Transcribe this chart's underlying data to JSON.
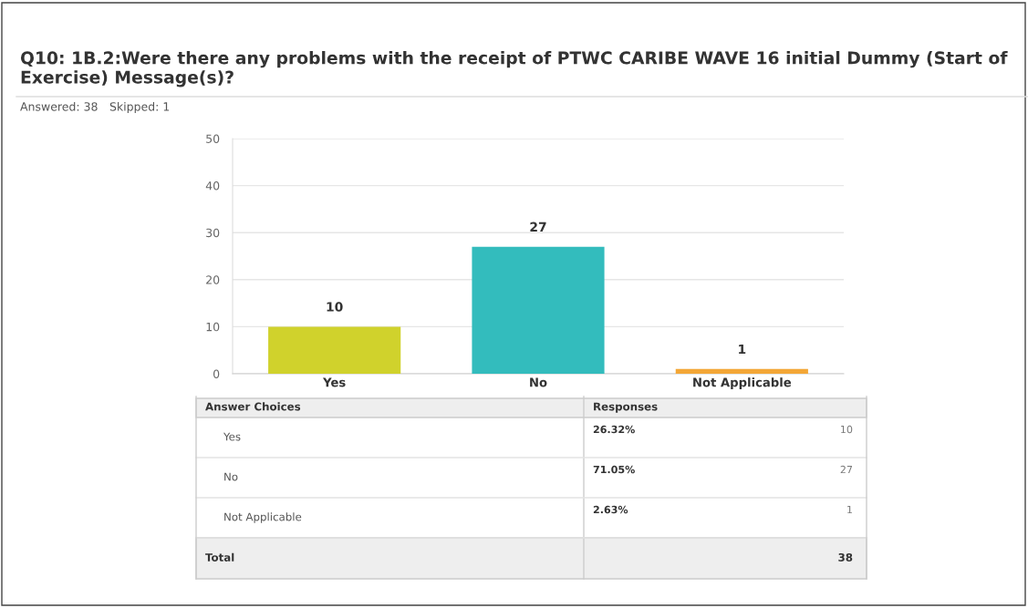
{
  "chart_data": {
    "type": "bar",
    "title": "Q10: 1B.2:Were there any problems with the receipt of PTWC CARIBE WAVE 16 initial Dummy (Start of Exercise) Message(s)?",
    "categories": [
      "Yes",
      "No",
      "Not Applicable"
    ],
    "values": [
      10,
      27,
      1
    ],
    "colors": [
      "#d0d22c",
      "#33bcbd",
      "#f3a737"
    ],
    "ylim": [
      0,
      50
    ],
    "yticks": [
      0,
      10,
      20,
      30,
      40,
      50
    ],
    "grid": "y",
    "data_labels": true,
    "legend": false,
    "annotations": [
      "Answered: 38",
      "Skipped: 1",
      "Answer Choices",
      "Responses",
      "Yes",
      "26.32%",
      "10",
      "No",
      "71.05%",
      "27",
      "Not Applicable",
      "2.63%",
      "1",
      "Total",
      "38"
    ]
  }
}
